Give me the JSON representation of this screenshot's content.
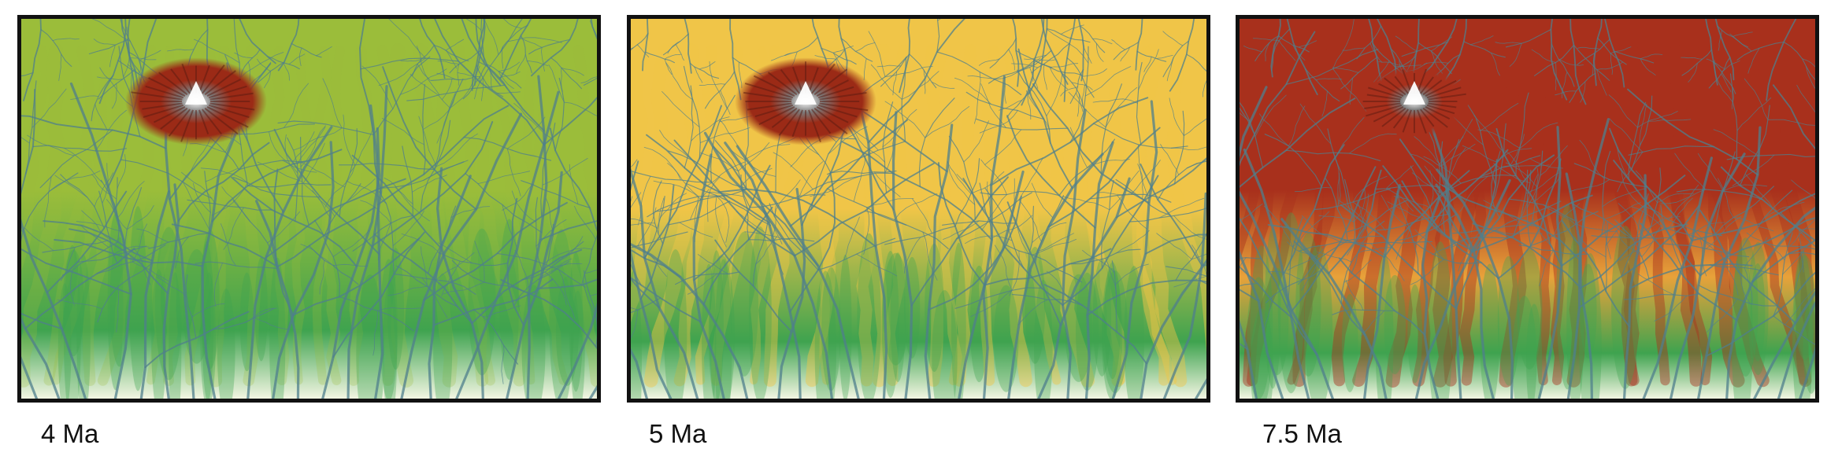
{
  "panels": [
    {
      "label": "4 Ma",
      "stage": 0,
      "colors": {
        "low": "#f2f5e2",
        "mid": "#3fa34f",
        "upper": "#9bbd3a",
        "high": "#9b2a16",
        "peak": "#ffffff"
      }
    },
    {
      "label": "5 Ma",
      "stage": 1,
      "colors": {
        "low": "#f2f5e2",
        "mid": "#3fa34f",
        "upper": "#f0c548",
        "high": "#9b2a16",
        "peak": "#ffffff"
      }
    },
    {
      "label": "7.5 Ma",
      "stage": 2,
      "colors": {
        "low": "#f2f5e2",
        "mid": "#3fa34f",
        "upper": "#e8a23a",
        "high": "#a8301c",
        "peak": "#ffffff"
      }
    }
  ],
  "palette": {
    "river": "#4f7f8c",
    "snow": "#ffffff",
    "rock": "#7a7a7a",
    "border": "#111111"
  }
}
